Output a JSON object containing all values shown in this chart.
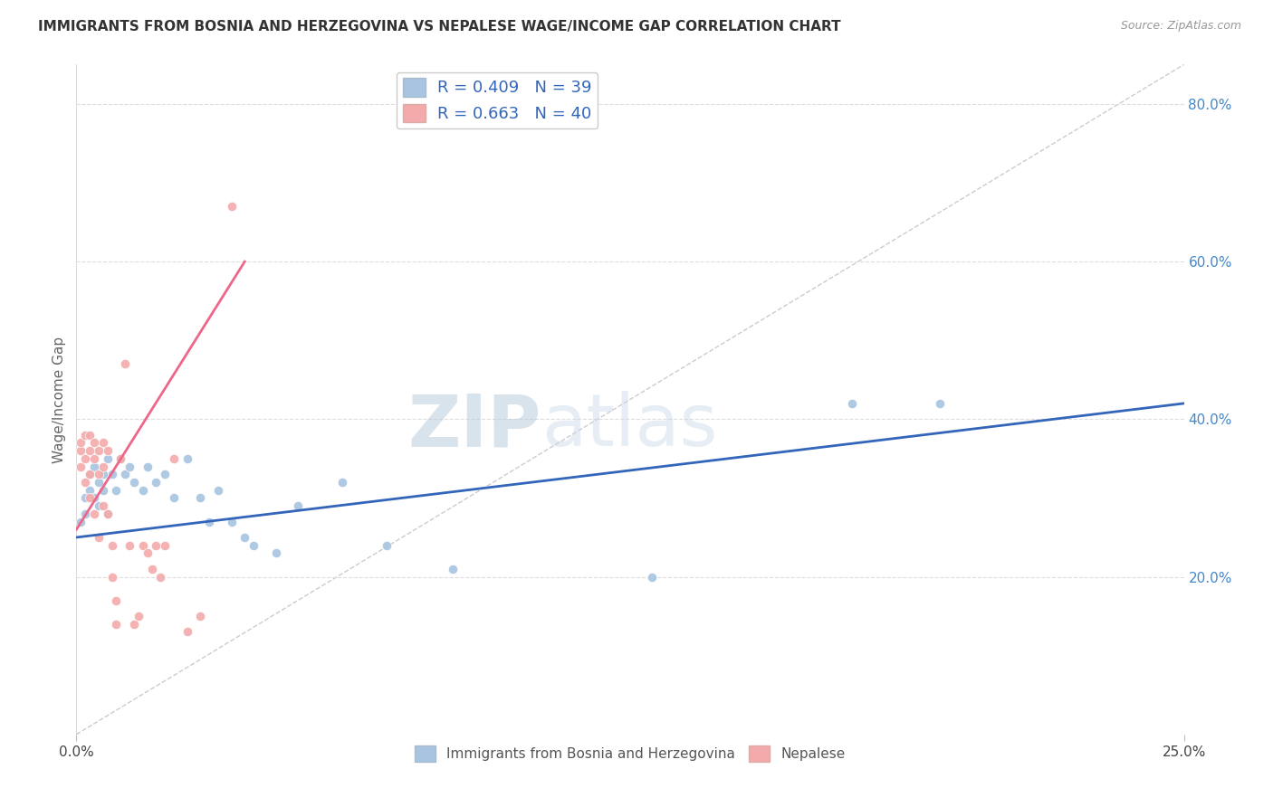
{
  "title": "IMMIGRANTS FROM BOSNIA AND HERZEGOVINA VS NEPALESE WAGE/INCOME GAP CORRELATION CHART",
  "source": "Source: ZipAtlas.com",
  "ylabel": "Wage/Income Gap",
  "xmin": 0.0,
  "xmax": 0.25,
  "ymin": 0.0,
  "ymax": 0.85,
  "right_yticks": [
    0.2,
    0.4,
    0.6,
    0.8
  ],
  "right_yticklabels": [
    "20.0%",
    "40.0%",
    "60.0%",
    "80.0%"
  ],
  "legend_label1": "Immigrants from Bosnia and Herzegovina",
  "legend_label2": "Nepalese",
  "blue_color": "#A8C4E0",
  "pink_color": "#F4AAAA",
  "blue_line_color": "#3366BB",
  "pink_line_color": "#EE6688",
  "blue_dots_x": [
    0.001,
    0.002,
    0.002,
    0.003,
    0.003,
    0.004,
    0.004,
    0.005,
    0.005,
    0.006,
    0.006,
    0.007,
    0.007,
    0.008,
    0.009,
    0.01,
    0.011,
    0.012,
    0.013,
    0.015,
    0.016,
    0.018,
    0.02,
    0.022,
    0.025,
    0.028,
    0.03,
    0.032,
    0.035,
    0.038,
    0.04,
    0.045,
    0.05,
    0.06,
    0.07,
    0.085,
    0.13,
    0.175,
    0.195
  ],
  "blue_dots_y": [
    0.27,
    0.3,
    0.28,
    0.33,
    0.31,
    0.34,
    0.3,
    0.32,
    0.29,
    0.33,
    0.31,
    0.35,
    0.28,
    0.33,
    0.31,
    0.35,
    0.33,
    0.34,
    0.32,
    0.31,
    0.34,
    0.32,
    0.33,
    0.3,
    0.35,
    0.3,
    0.27,
    0.31,
    0.27,
    0.25,
    0.24,
    0.23,
    0.29,
    0.32,
    0.24,
    0.21,
    0.2,
    0.42,
    0.42
  ],
  "pink_dots_x": [
    0.001,
    0.001,
    0.001,
    0.002,
    0.002,
    0.002,
    0.003,
    0.003,
    0.003,
    0.003,
    0.004,
    0.004,
    0.004,
    0.005,
    0.005,
    0.005,
    0.006,
    0.006,
    0.006,
    0.007,
    0.007,
    0.008,
    0.008,
    0.009,
    0.009,
    0.01,
    0.011,
    0.012,
    0.013,
    0.014,
    0.015,
    0.016,
    0.017,
    0.018,
    0.019,
    0.02,
    0.022,
    0.025,
    0.028,
    0.035
  ],
  "pink_dots_y": [
    0.36,
    0.34,
    0.37,
    0.38,
    0.35,
    0.32,
    0.38,
    0.36,
    0.33,
    0.3,
    0.37,
    0.35,
    0.28,
    0.36,
    0.33,
    0.25,
    0.37,
    0.34,
    0.29,
    0.36,
    0.28,
    0.24,
    0.2,
    0.17,
    0.14,
    0.35,
    0.47,
    0.24,
    0.14,
    0.15,
    0.24,
    0.23,
    0.21,
    0.24,
    0.2,
    0.24,
    0.35,
    0.13,
    0.15,
    0.67
  ],
  "blue_line_x": [
    0.0,
    0.25
  ],
  "blue_line_y": [
    0.25,
    0.42
  ],
  "pink_line_x": [
    0.0,
    0.038
  ],
  "pink_line_y": [
    0.26,
    0.6
  ],
  "diag_line_x": [
    0.0,
    0.25
  ],
  "diag_line_y": [
    0.0,
    0.85
  ],
  "watermark_zip": "ZIP",
  "watermark_atlas": "atlas",
  "bg_color": "#FFFFFF",
  "grid_color": "#DDDDDD"
}
